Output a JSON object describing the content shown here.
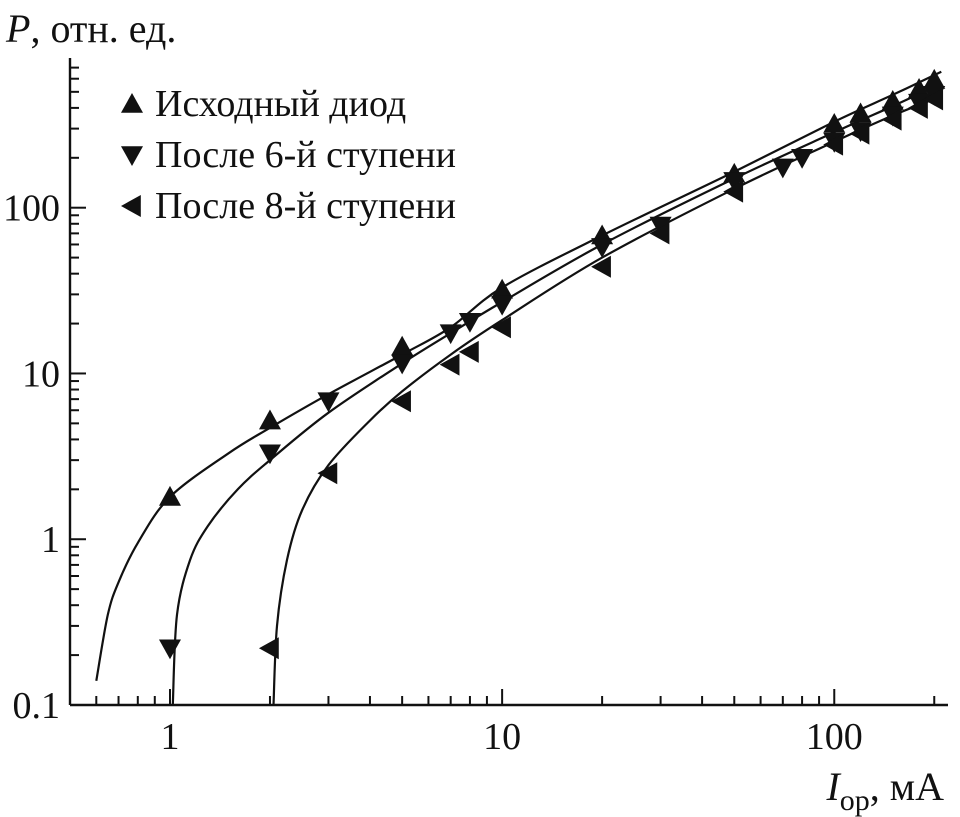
{
  "chart_data": {
    "type": "scatter",
    "x_scale": "log",
    "y_scale": "log",
    "xlim": [
      0.5,
      220
    ],
    "ylim": [
      0.1,
      800
    ],
    "xlabel": {
      "main": "I",
      "sub": "ор",
      "unit": ", мА"
    },
    "ylabel": {
      "main": "P",
      "unit": ", отн. ед."
    },
    "x_ticks": [
      {
        "value": 1,
        "label": "1"
      },
      {
        "value": 10,
        "label": "10"
      },
      {
        "value": 100,
        "label": "100"
      }
    ],
    "y_ticks": [
      {
        "value": 0.1,
        "label": "0.1"
      },
      {
        "value": 1,
        "label": "1"
      },
      {
        "value": 10,
        "label": "10"
      },
      {
        "value": 100,
        "label": "100"
      }
    ],
    "grid": false,
    "legend_position": "top-left",
    "series": [
      {
        "name": "Исходный диод",
        "marker": "triangle-up",
        "points": [
          [
            1,
            1.8
          ],
          [
            2,
            5.2
          ],
          [
            5,
            14.5
          ],
          [
            10,
            32
          ],
          [
            20,
            68
          ],
          [
            50,
            160
          ],
          [
            100,
            320
          ],
          [
            120,
            370
          ],
          [
            150,
            440
          ],
          [
            180,
            520
          ],
          [
            200,
            590
          ]
        ],
        "fit": [
          [
            0.6,
            0.14
          ],
          [
            0.65,
            0.35
          ],
          [
            0.7,
            0.55
          ],
          [
            0.8,
            0.95
          ],
          [
            1,
            1.8
          ],
          [
            1.5,
            3.3
          ],
          [
            2,
            4.7
          ],
          [
            3,
            7.5
          ],
          [
            5,
            13
          ],
          [
            7,
            19
          ],
          [
            10,
            33
          ],
          [
            20,
            68
          ],
          [
            50,
            165
          ],
          [
            100,
            330
          ],
          [
            150,
            480
          ],
          [
            210,
            660
          ]
        ]
      },
      {
        "name": "После 6-й ступени",
        "marker": "triangle-down",
        "points": [
          [
            1,
            0.22
          ],
          [
            2,
            3.3
          ],
          [
            3,
            6.8
          ],
          [
            5,
            11.5
          ],
          [
            7,
            17.5
          ],
          [
            8,
            20.5
          ],
          [
            10,
            26
          ],
          [
            20,
            58
          ],
          [
            30,
            78
          ],
          [
            50,
            145
          ],
          [
            70,
            175
          ],
          [
            80,
            200
          ],
          [
            100,
            250
          ],
          [
            120,
            290
          ],
          [
            150,
            360
          ],
          [
            180,
            430
          ],
          [
            200,
            480
          ]
        ],
        "fit": [
          [
            1.02,
            0.1
          ],
          [
            1.05,
            0.35
          ],
          [
            1.15,
            0.75
          ],
          [
            1.3,
            1.2
          ],
          [
            1.6,
            2.0
          ],
          [
            2,
            3.0
          ],
          [
            3,
            5.8
          ],
          [
            5,
            11.5
          ],
          [
            7,
            17.5
          ],
          [
            10,
            27
          ],
          [
            20,
            60
          ],
          [
            50,
            150
          ],
          [
            100,
            285
          ],
          [
            150,
            410
          ],
          [
            210,
            560
          ]
        ]
      },
      {
        "name": "После 8-й ступени",
        "marker": "triangle-left",
        "points": [
          [
            2,
            0.22
          ],
          [
            3,
            2.5
          ],
          [
            5,
            6.8
          ],
          [
            7,
            11.3
          ],
          [
            8,
            13.5
          ],
          [
            10,
            19
          ],
          [
            20,
            44
          ],
          [
            30,
            70
          ],
          [
            50,
            125
          ],
          [
            100,
            240
          ],
          [
            120,
            280
          ],
          [
            150,
            340
          ],
          [
            180,
            400
          ],
          [
            200,
            450
          ]
        ],
        "fit": [
          [
            2.05,
            0.1
          ],
          [
            2.1,
            0.3
          ],
          [
            2.25,
            0.75
          ],
          [
            2.5,
            1.5
          ],
          [
            3,
            2.8
          ],
          [
            4,
            5.2
          ],
          [
            5,
            7.8
          ],
          [
            7,
            13
          ],
          [
            10,
            21
          ],
          [
            20,
            50
          ],
          [
            50,
            130
          ],
          [
            100,
            250
          ],
          [
            150,
            360
          ],
          [
            210,
            470
          ]
        ]
      }
    ]
  }
}
